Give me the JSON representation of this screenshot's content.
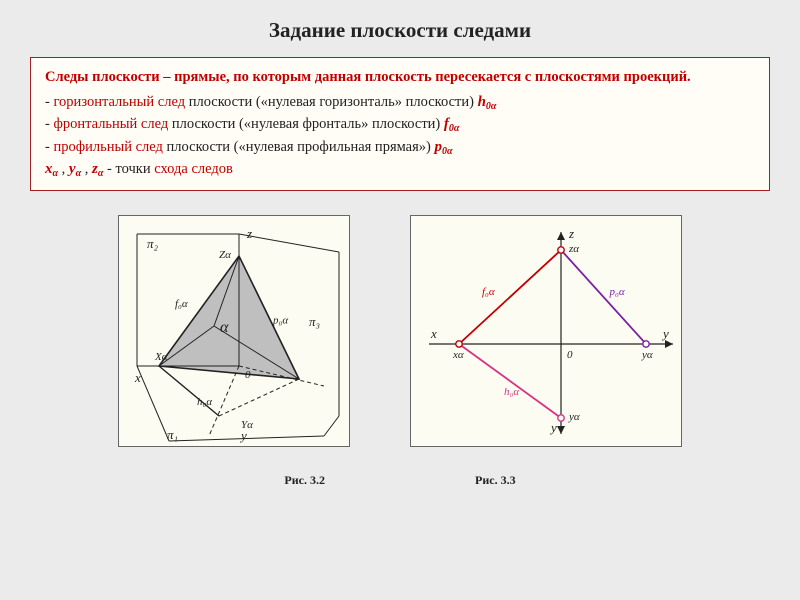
{
  "title": "Задание плоскости следами",
  "def": {
    "lead_bold": "Следы плоскости",
    "lead_rest": " – прямые, по которым данная плоскость пересекается с плоскостями проекций.",
    "items": [
      {
        "prefix": "  - ",
        "kind": "горизонтальный след",
        "rest": " плоскости  («нулевая горизонталь» плоскости)   ",
        "sym": "h",
        "sub": "0α"
      },
      {
        "prefix": "  - ",
        "kind": "фронтальный след",
        "rest": "  плоскости («нулевая фронталь» плоскости)    ",
        "sym": "f",
        "sub": "0α"
      },
      {
        "prefix": "  - ",
        "kind": "профильный след",
        "rest": " плоскости   («нулевая профильная прямая»)       ",
        "sym": "p",
        "sub": "0α"
      }
    ],
    "last_pre": "   ",
    "last_syms": [
      {
        "sym": "x",
        "sub": "α",
        "after": " ,    "
      },
      {
        "sym": "y",
        "sub": "α",
        "after": " ,    "
      },
      {
        "sym": "z",
        "sub": "α",
        "after": "   "
      }
    ],
    "last_mid": "- точки ",
    "last_red": "схода следов"
  },
  "captions": {
    "left": "Рис. 3.2",
    "right": "Рис. 3.3"
  },
  "colors": {
    "red": "#c00000",
    "purple": "#7a1fa2",
    "magenta": "#d63384",
    "axis": "#222222",
    "fill": "#bfbfbf",
    "bg": "#fcfcf2",
    "dot_fill": "#ffffff"
  },
  "fig_left": {
    "view": "0 0 230 230",
    "O": [
      120,
      150
    ],
    "x": [
      18,
      150
    ],
    "z": [
      120,
      18
    ],
    "y_r": [
      205,
      170
    ],
    "y_d": [
      90,
      220
    ],
    "X": [
      40,
      150
    ],
    "Z": [
      120,
      40
    ],
    "Y_r": [
      180,
      163
    ],
    "Y_d": [
      100,
      200
    ],
    "A": [
      95,
      110
    ],
    "labels": {
      "pi2": "π₂",
      "pi1": "π₁",
      "pi3": "π₃",
      "x": "x",
      "z": "z",
      "y": "y",
      "Xa": "Xα",
      "Za": "Zα",
      "Ya": "Yα",
      "O": "0",
      "alpha": "α",
      "f0a": "f₀α",
      "h0a": "h₀α",
      "p0a": "p₀α"
    },
    "fontsize_axis": 13,
    "fontsize_small": 11,
    "line_w": 1.6,
    "dash": "4,3"
  },
  "fig_right": {
    "view": "0 0 270 230",
    "O": [
      150,
      128
    ],
    "x_end": [
      18,
      128
    ],
    "y_end": [
      262,
      128
    ],
    "z_end": [
      150,
      16
    ],
    "yneg_end": [
      150,
      218
    ],
    "xa": [
      48,
      128
    ],
    "za": [
      150,
      34
    ],
    "ya_r": [
      235,
      128
    ],
    "ya_d": [
      150,
      202
    ],
    "labels": {
      "x": "x",
      "y": "y",
      "z": "z",
      "O": "0",
      "xa": "xα",
      "za": "zα",
      "ya": "yα",
      "f0a": "f₀α",
      "h0a": "h₀α",
      "p0a": "p₀α"
    },
    "line_w": 1.8,
    "axis_w": 1.2,
    "fontsize_axis": 13,
    "fontsize_small": 11,
    "dot_r": 3.2
  }
}
